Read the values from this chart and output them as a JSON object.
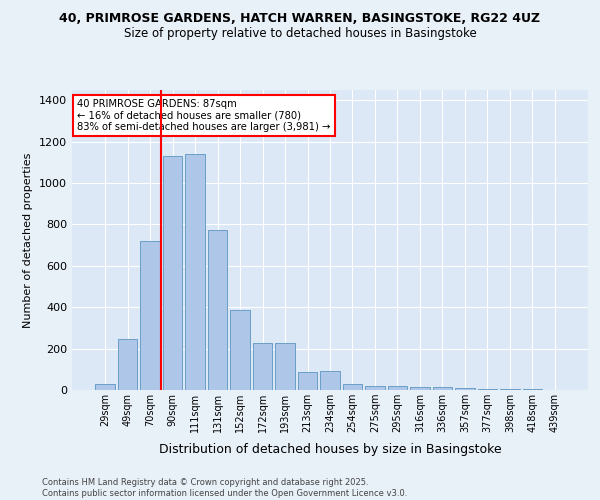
{
  "title1": "40, PRIMROSE GARDENS, HATCH WARREN, BASINGSTOKE, RG22 4UZ",
  "title2": "Size of property relative to detached houses in Basingstoke",
  "xlabel": "Distribution of detached houses by size in Basingstoke",
  "ylabel": "Number of detached properties",
  "categories": [
    "29sqm",
    "49sqm",
    "70sqm",
    "90sqm",
    "111sqm",
    "131sqm",
    "152sqm",
    "172sqm",
    "193sqm",
    "213sqm",
    "234sqm",
    "254sqm",
    "275sqm",
    "295sqm",
    "316sqm",
    "336sqm",
    "357sqm",
    "377sqm",
    "398sqm",
    "418sqm",
    "439sqm"
  ],
  "values": [
    30,
    245,
    720,
    1130,
    1140,
    775,
    385,
    225,
    225,
    88,
    90,
    30,
    20,
    20,
    15,
    15,
    10,
    5,
    3,
    3,
    2
  ],
  "bar_color": "#aec6e8",
  "bar_edge_color": "#6a9fc8",
  "vline_color": "red",
  "vline_index": 3,
  "annotation_line1": "40 PRIMROSE GARDENS: 87sqm",
  "annotation_line2": "← 16% of detached houses are smaller (780)",
  "annotation_line3": "83% of semi-detached houses are larger (3,981) →",
  "annotation_box_color": "white",
  "annotation_box_edge": "red",
  "footer": "Contains HM Land Registry data © Crown copyright and database right 2025.\nContains public sector information licensed under the Open Government Licence v3.0.",
  "ylim": [
    0,
    1450
  ],
  "yticks": [
    0,
    200,
    400,
    600,
    800,
    1000,
    1200,
    1400
  ],
  "bg_color": "#e8f0f8",
  "plot_bg_color": "#dce8f5",
  "grid_color": "white",
  "title1_fontsize": 9,
  "title2_fontsize": 8.5,
  "ylabel_fontsize": 8,
  "xlabel_fontsize": 9
}
